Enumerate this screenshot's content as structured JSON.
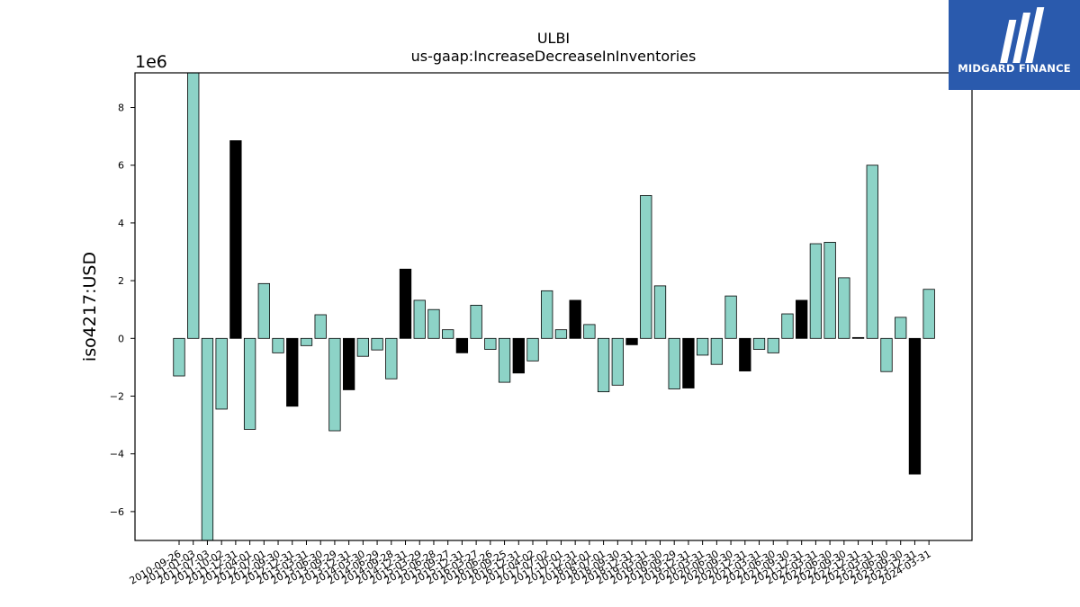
{
  "chart_data": {
    "type": "bar",
    "title": "ULBI",
    "subtitle": "us-gaap:IncreaseDecreaseInInventories",
    "xlabel": "",
    "ylabel": "iso4217:USD",
    "y_multiplier_label": "1e6",
    "ylim": [
      -7.0,
      9.2
    ],
    "yticks": [
      -6,
      -4,
      -2,
      0,
      2,
      4,
      6,
      8
    ],
    "ytick_labels": [
      "−6",
      "−4",
      "−2",
      "0",
      "2",
      "4",
      "6",
      "8"
    ],
    "grid": false,
    "colors": {
      "quarterly": "#8dd3c7",
      "annual": "#000000",
      "edge": "#000000"
    },
    "categories": [
      "2010-09-26",
      "2011-01-03",
      "2011-07-03",
      "2011-10-02",
      "2011-12-31",
      "2012-04-01",
      "2012-07-01",
      "2012-09-30",
      "2012-12-31",
      "2013-03-31",
      "2013-06-30",
      "2013-09-29",
      "2013-12-31",
      "2014-03-30",
      "2014-06-29",
      "2014-09-28",
      "2014-12-31",
      "2015-03-29",
      "2015-06-28",
      "2015-09-27",
      "2015-12-31",
      "2016-03-27",
      "2016-06-26",
      "2016-09-25",
      "2016-12-31",
      "2017-04-02",
      "2017-07-02",
      "2017-10-01",
      "2017-12-31",
      "2018-04-01",
      "2018-07-01",
      "2018-09-30",
      "2018-12-31",
      "2019-03-31",
      "2019-06-30",
      "2019-09-29",
      "2019-12-31",
      "2020-03-31",
      "2020-06-30",
      "2020-09-30",
      "2020-12-31",
      "2021-03-31",
      "2021-06-30",
      "2021-09-30",
      "2021-12-31",
      "2022-03-31",
      "2022-06-30",
      "2022-09-30",
      "2022-12-31",
      "2023-03-31",
      "2023-06-30",
      "2023-09-30",
      "2023-12-31",
      "2024-03-31"
    ],
    "values": [
      -1.3,
      9.2,
      -7.0,
      -2.45,
      6.85,
      -3.15,
      1.9,
      -0.5,
      -2.35,
      -0.25,
      0.82,
      -3.2,
      -1.78,
      -0.62,
      -0.4,
      -1.4,
      2.4,
      1.32,
      1.0,
      0.3,
      -0.5,
      1.15,
      -0.38,
      -1.52,
      -1.2,
      -0.78,
      1.65,
      0.3,
      1.32,
      0.48,
      -1.85,
      -1.62,
      -0.22,
      4.95,
      1.82,
      -1.75,
      -1.72,
      -0.58,
      -0.9,
      1.47,
      -1.13,
      -0.38,
      -0.5,
      0.85,
      1.32,
      3.28,
      3.33,
      2.1,
      0.03,
      6.0,
      -1.15,
      0.73,
      -4.7,
      1.7
    ],
    "annual": [
      false,
      false,
      false,
      false,
      true,
      false,
      false,
      false,
      true,
      false,
      false,
      false,
      true,
      false,
      false,
      false,
      true,
      false,
      false,
      false,
      true,
      false,
      false,
      false,
      true,
      false,
      false,
      false,
      true,
      false,
      false,
      false,
      true,
      false,
      false,
      false,
      true,
      false,
      false,
      false,
      true,
      false,
      false,
      false,
      true,
      false,
      false,
      false,
      true,
      false,
      false,
      false,
      true,
      false
    ]
  },
  "logo": {
    "text": "MIDGARD FINANCE",
    "background": "#2a5aad",
    "foreground": "#ffffff"
  }
}
